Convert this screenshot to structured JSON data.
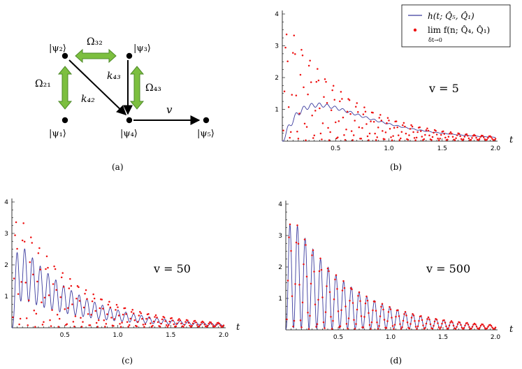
{
  "diagram": {
    "states": {
      "psi1": "|ψ₁⟩",
      "psi2": "|ψ₂⟩",
      "psi3": "|ψ₃⟩",
      "psi4": "|ψ₄⟩",
      "psi5": "|ψ₅⟩"
    },
    "couplings": {
      "omega21": "Ω₂₁",
      "omega32": "Ω₃₂",
      "omega43": "Ω₄₃"
    },
    "rates": {
      "k42": "k₄₂",
      "k43": "k₄₃",
      "v": "v"
    }
  },
  "captions": {
    "a": "(a)",
    "b": "(b)",
    "c": "(c)",
    "d": "(d)"
  },
  "legend": {
    "curve": "h(t; Q̂₅, Q̂₁)",
    "dots": "lim f(n; Q̂₄, Q̂₁)",
    "dots_limit": "δt→0"
  },
  "colors": {
    "curve": "#3b3b9e",
    "dots": "#ee1111",
    "arrow_green": "#7cbf3f",
    "arrow_green_edge": "#4e8a28"
  },
  "chart_data": [
    {
      "id": "b",
      "type": "line",
      "title": "v = 5",
      "xlabel": "t",
      "ylabel": "",
      "xlim": [
        0,
        2.0
      ],
      "ylim": [
        0,
        4.1
      ],
      "xticks": [
        "0.5",
        "1.0",
        "1.5",
        "2.0"
      ],
      "yticks": [
        "1",
        "2",
        "3",
        "4"
      ],
      "series": [
        {
          "name": "h(t; Q5, Q1)",
          "style": "line",
          "model": "damped",
          "v": 5
        },
        {
          "name": "lim f(n; Q4, Q1)",
          "style": "dots",
          "model": "oscillation"
        }
      ]
    },
    {
      "id": "c",
      "type": "line",
      "title": "v = 50",
      "xlabel": "t",
      "ylabel": "",
      "xlim": [
        0,
        2.0
      ],
      "ylim": [
        0,
        4.1
      ],
      "xticks": [
        "0.5",
        "1.0",
        "1.5",
        "2.0"
      ],
      "yticks": [
        "1",
        "2",
        "3",
        "4"
      ],
      "series": [
        {
          "name": "h(t; Q5, Q1)",
          "style": "line",
          "model": "damped",
          "v": 50
        },
        {
          "name": "lim f(n; Q4, Q1)",
          "style": "dots",
          "model": "oscillation"
        }
      ]
    },
    {
      "id": "d",
      "type": "line",
      "title": "v = 500",
      "xlabel": "t",
      "ylabel": "",
      "xlim": [
        0,
        2.0
      ],
      "ylim": [
        0,
        4.1
      ],
      "xticks": [
        "0.5",
        "1.0",
        "1.5",
        "2.0"
      ],
      "yticks": [
        "1",
        "2",
        "3",
        "4"
      ],
      "series": [
        {
          "name": "h(t; Q5, Q1)",
          "style": "line",
          "model": "damped",
          "v": 500
        },
        {
          "name": "lim f(n; Q4, Q1)",
          "style": "dots",
          "model": "oscillation"
        }
      ]
    }
  ]
}
